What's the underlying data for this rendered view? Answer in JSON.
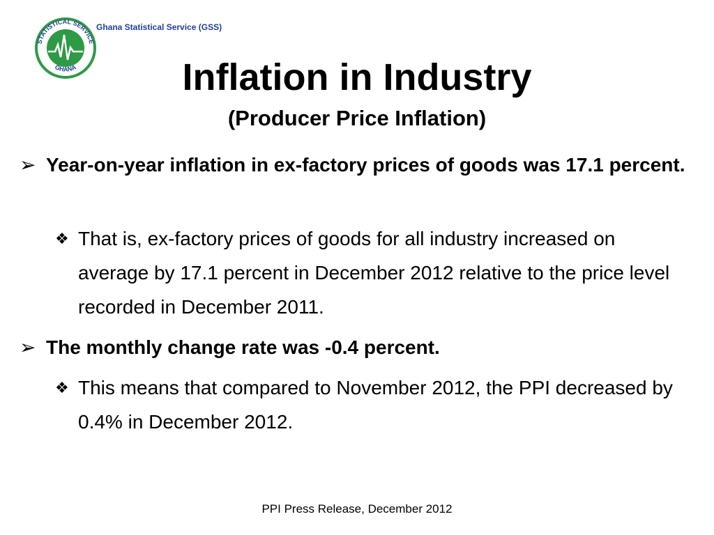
{
  "header": {
    "org_name": "Ghana Statistical Service (GSS)",
    "logo": {
      "icon": "gss-logo-icon",
      "text_top": "STATISTICAL SERVICE",
      "text_bottom": "GHANA"
    }
  },
  "slide": {
    "title": "Inflation in Industry",
    "subtitle": "(Producer Price Inflation)",
    "bullets": [
      {
        "marker": "➢",
        "text": "Year-on-year inflation in ex-factory prices of goods was 17.1 percent.",
        "sub": {
          "marker": "❖",
          "text": "That is, ex-factory prices of goods for all industry increased on average by 17.1 percent in December 2012 relative to the price level recorded in December 2011."
        }
      },
      {
        "marker": "➢",
        "text": "The monthly change rate was -0.4 percent.",
        "sub": {
          "marker": "❖",
          "text": "This means that compared to November 2012, the PPI decreased by 0.4% in December 2012."
        }
      }
    ]
  },
  "footer": {
    "text": "PPI Press Release, December 2012"
  },
  "colors": {
    "logo_green": "#2e9a45",
    "logo_blue": "#1f3f9a",
    "text": "#000000"
  }
}
